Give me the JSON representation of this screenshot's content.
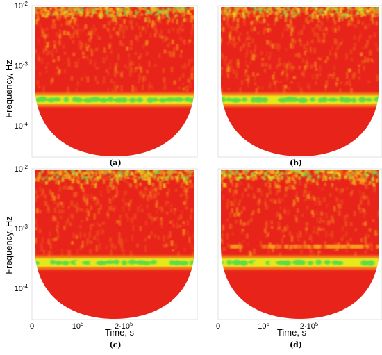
{
  "chart_data": {
    "type": "heatmap",
    "description_kind": "wavelet spectrogram",
    "layout": "2x2 grid",
    "ylabel": "Frequency, Hz",
    "xlabel": "Time, s",
    "yscale": "log",
    "ylim": [
      3e-05,
      0.01
    ],
    "xlim": [
      0,
      360000
    ],
    "y_ticks": [
      {
        "value": 0.01,
        "label": "10",
        "exp": "-2"
      },
      {
        "value": 0.001,
        "label": "10",
        "exp": "-3"
      },
      {
        "value": 0.0001,
        "label": "10",
        "exp": "-4"
      }
    ],
    "x_ticks": [
      {
        "value": 0,
        "label": "0",
        "exp": ""
      },
      {
        "value": 100000,
        "label": "10",
        "exp": "5"
      },
      {
        "value": 200000,
        "label": "2·10",
        "exp": "5"
      }
    ],
    "colormap": [
      "#e8231a",
      "#f05a1c",
      "#f7a31a",
      "#e6e81e",
      "#5fdc4a",
      "#25c837"
    ],
    "panels": [
      {
        "label": "(a)",
        "band_hz": 0.00027,
        "band_strength": 1.0,
        "secondary_band_hz": null
      },
      {
        "label": "(b)",
        "band_hz": 0.00027,
        "band_strength": 0.95,
        "secondary_band_hz": null
      },
      {
        "label": "(c)",
        "band_hz": 0.00027,
        "band_strength": 1.0,
        "secondary_band_hz": null
      },
      {
        "label": "(d)",
        "band_hz": 0.00027,
        "band_strength": 0.85,
        "secondary_band_hz": 0.0005
      }
    ]
  }
}
